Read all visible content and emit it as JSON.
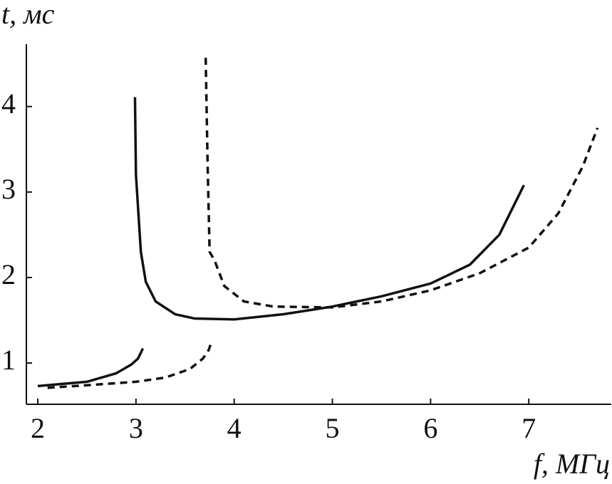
{
  "chart_data": {
    "type": "line",
    "y_label": "t, мс",
    "x_label": "f, МГц",
    "xlim": [
      1.884,
      7.84
    ],
    "ylim": [
      0.517,
      4.73
    ],
    "xticks": [
      2,
      3,
      4,
      5,
      6,
      7
    ],
    "yticks": [
      1,
      2,
      3,
      4
    ],
    "series": [
      {
        "color": "#111111",
        "style": "solid",
        "x": [
          2,
          2.5,
          2.8,
          2.95,
          3.02,
          3.05,
          3.07,
          2.98,
          2.99,
          3.0,
          3.05,
          3.1,
          3.2,
          3.4,
          3.6,
          4,
          4.5,
          5,
          5.5,
          6,
          6.4,
          6.7,
          6.95
        ],
        "values": [
          0.73,
          0.78,
          0.88,
          0.98,
          1.05,
          1.12,
          1.17,
          null,
          4.11,
          3.2,
          2.3,
          1.95,
          1.72,
          1.57,
          1.52,
          1.51,
          1.57,
          1.66,
          1.78,
          1.93,
          2.15,
          2.5,
          3.08
        ]
      },
      {
        "color": "#111111",
        "style": "dashed",
        "x": [
          2.1,
          2.5,
          3,
          3.3,
          3.55,
          3.68,
          3.74,
          3.77,
          3.78,
          3.71,
          3.73,
          3.75,
          3.8,
          3.9,
          4.1,
          4.4,
          5,
          5.5,
          6,
          6.5,
          7,
          7.3,
          7.55,
          7.7
        ],
        "values": [
          0.71,
          0.74,
          0.78,
          0.83,
          0.93,
          1.05,
          1.15,
          1.25,
          null,
          4.57,
          3.3,
          2.3,
          2.2,
          1.9,
          1.72,
          1.66,
          1.65,
          1.72,
          1.85,
          2.05,
          2.35,
          2.75,
          3.3,
          3.75
        ]
      }
    ]
  }
}
